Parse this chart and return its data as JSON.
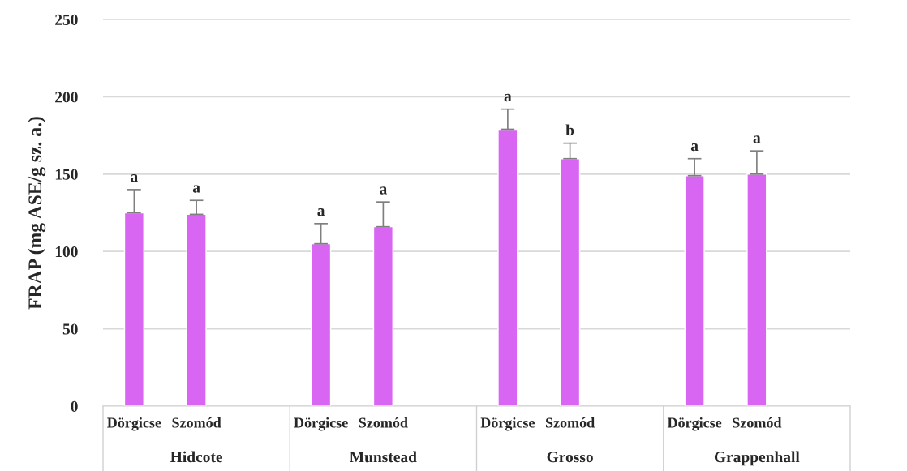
{
  "chart_data": {
    "type": "bar",
    "ylabel": "FRAP (mg ASE/g sz. a.)",
    "categories": [
      "Dörgicse",
      "Szomód",
      "Dörgicse",
      "Szomód",
      "Dörgicse",
      "Szomód",
      "Dörgicse",
      "Szomód"
    ],
    "values": [
      125,
      124,
      105,
      116,
      179,
      160,
      149,
      150
    ],
    "errors": [
      [
        125,
        140
      ],
      [
        124,
        133
      ],
      [
        105,
        118
      ],
      [
        116,
        132
      ],
      [
        179,
        192
      ],
      [
        160,
        170
      ],
      [
        149,
        160
      ],
      [
        150,
        165
      ]
    ],
    "value_labels": [
      "a",
      "a",
      "a",
      "a",
      "a",
      "b",
      "a",
      "a"
    ],
    "color": "#d966f2",
    "annotations": [
      "Hidcote",
      "Munstead",
      "Grosso",
      "Grappenhall"
    ],
    "ylim": [
      0,
      250
    ],
    "yticks": [
      0,
      50,
      100,
      150,
      200,
      250
    ],
    "grid": "y",
    "legend": false
  }
}
